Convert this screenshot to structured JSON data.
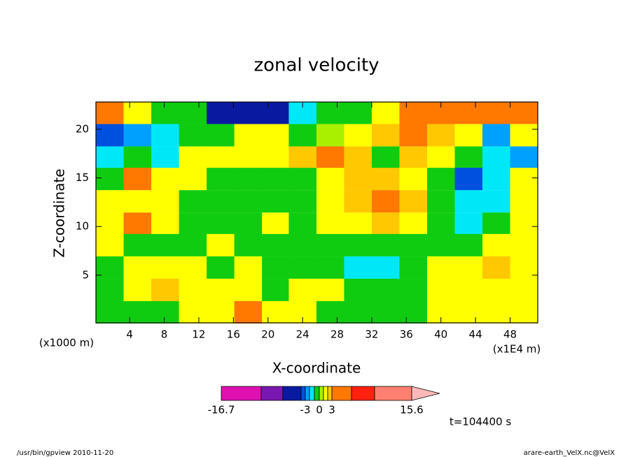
{
  "chart_data": {
    "type": "contour",
    "title": "zonal velocity",
    "x_label": "X-coordinate",
    "y_label": "Z-coordinate",
    "x_unit": "(x1E4 m)",
    "y_unit": "(x1000 m)",
    "time_label": "t=104400 s",
    "footer_left": "/usr/bin/gpview  2010-11-20",
    "footer_right": "arare-earth_VelX.nc@VelX",
    "xlim": [
      0.1,
      51.2
    ],
    "ylim": [
      0.1,
      22.8
    ],
    "xticks": [
      4,
      8,
      12,
      16,
      20,
      24,
      28,
      32,
      36,
      40,
      44,
      48
    ],
    "yticks": [
      5,
      10,
      15,
      20
    ],
    "x": [
      1.7,
      4.9,
      8.1,
      11.3,
      14.5,
      17.7,
      20.9,
      24.0,
      27.2,
      30.4,
      33.6,
      36.8,
      40.0,
      43.2,
      46.4,
      49.6
    ],
    "y": [
      21.7,
      19.4,
      17.1,
      14.9,
      12.6,
      10.3,
      8.1,
      5.8,
      3.5,
      1.2
    ],
    "z": [
      [
        4,
        1.5,
        -0.5,
        -0.5,
        -6,
        -6,
        -6,
        -1.5,
        -0.5,
        -0.5,
        1.5,
        4,
        4,
        4,
        3.5,
        4
      ],
      [
        -3.5,
        -2.5,
        -1.5,
        -0.5,
        -0.5,
        1.5,
        1.5,
        -0.5,
        0.5,
        1.5,
        2.5,
        4,
        2.5,
        1.5,
        -2.5,
        1.5
      ],
      [
        -1.5,
        -0.5,
        -1.5,
        1.5,
        1.5,
        1.5,
        1.5,
        2.5,
        4,
        2.5,
        -0.5,
        2.5,
        1.5,
        -0.5,
        -1.5,
        -2.5
      ],
      [
        -0.5,
        3.5,
        1.5,
        1.5,
        -0.5,
        -0.5,
        -0.5,
        -0.5,
        1.5,
        2.5,
        2.5,
        1.5,
        -0.5,
        -3.5,
        -1.5,
        1.5
      ],
      [
        1.5,
        1.5,
        1.5,
        -0.5,
        -0.5,
        -0.5,
        -0.5,
        -0.5,
        1.5,
        2.5,
        4,
        2.5,
        -0.5,
        -1.5,
        -1.5,
        1.5
      ],
      [
        1.5,
        3.5,
        1.5,
        -0.5,
        -0.5,
        -0.5,
        1.5,
        -0.5,
        1.5,
        1.5,
        2.5,
        1.5,
        -0.5,
        -1.5,
        -0.5,
        1.5
      ],
      [
        1.5,
        -0.5,
        -0.5,
        -0.5,
        1.5,
        -0.5,
        -0.5,
        -0.5,
        -0.5,
        -0.5,
        -0.5,
        -0.5,
        -0.5,
        -0.5,
        1.5,
        1.5
      ],
      [
        -0.5,
        1.5,
        1.5,
        1.5,
        -0.5,
        1.5,
        -0.5,
        -0.5,
        -0.5,
        -1.5,
        -1.5,
        -0.5,
        1.5,
        1.5,
        2.5,
        1.5
      ],
      [
        -0.5,
        1.5,
        2.5,
        1.5,
        1.5,
        1.5,
        -0.5,
        1.5,
        1.5,
        -0.5,
        -0.5,
        -0.5,
        1.5,
        1.5,
        1.5,
        1.5
      ],
      [
        -0.5,
        -0.5,
        -0.5,
        1.5,
        1.5,
        3.5,
        1.5,
        1.5,
        -0.5,
        -0.5,
        -0.5,
        -0.5,
        1.5,
        1.5,
        1.5,
        1.5
      ]
    ],
    "levels": [
      -16.7,
      -11,
      -8,
      -4,
      -3,
      -2,
      -1,
      0,
      1,
      2,
      3,
      5,
      8,
      15.6
    ],
    "colors": [
      "#e010b0",
      "#7818b0",
      "#0a1aa0",
      "#0050e0",
      "#00a0ff",
      "#00e8f8",
      "#10cc10",
      "#a8f000",
      "#ffff00",
      "#ffc800",
      "#ff7800",
      "#ff2010",
      "#ff8070"
    ],
    "over_color": "#ffb8b8",
    "colorbar_ticks": [
      -16.7,
      -3,
      0,
      3,
      15.6
    ]
  }
}
